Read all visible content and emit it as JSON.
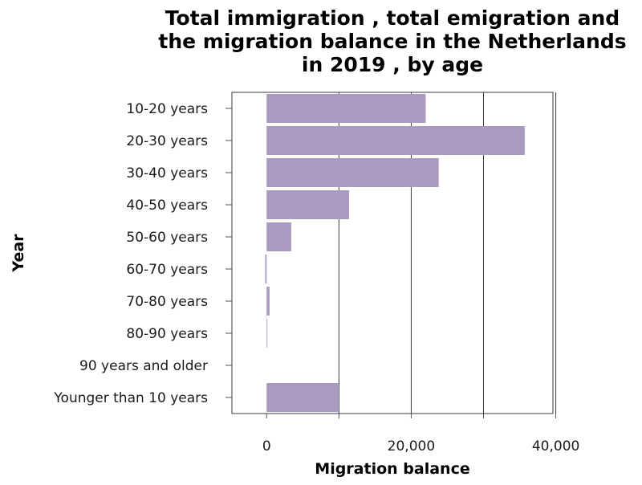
{
  "chart_data": {
    "type": "bar",
    "orientation": "horizontal",
    "title_lines": [
      "Total immigration , total emigration and",
      "the migration balance in the Netherlands",
      "in 2019 , by age"
    ],
    "xlabel": "Migration balance",
    "ylabel": "Year",
    "categories": [
      "10-20 years",
      "20-30 years",
      "30-40 years",
      "40-50 years",
      "50-60 years",
      "60-70 years",
      "70-80 years",
      "80-90 years",
      "90 years and older",
      "Younger than 10 years"
    ],
    "values": [
      22000,
      35700,
      23800,
      11400,
      3400,
      -200,
      400,
      100,
      0,
      9900
    ],
    "xlim": [
      -4800,
      39600
    ],
    "xticks": [
      0,
      10000,
      20000,
      30000,
      40000
    ],
    "xtick_labels": [
      "0",
      "",
      "20,000",
      "",
      "40,000"
    ],
    "bar_color": "#a99bbf",
    "grid": true
  }
}
